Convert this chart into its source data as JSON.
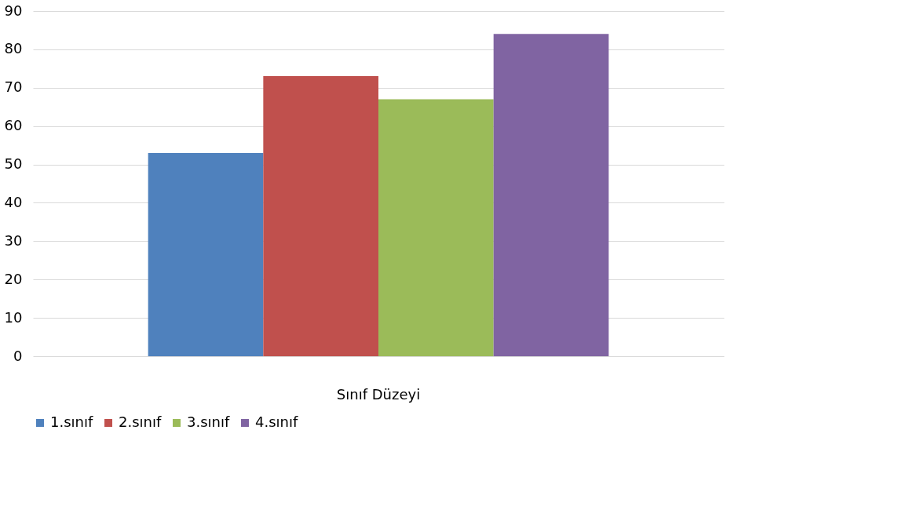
{
  "chart_data": {
    "type": "bar",
    "categories": [
      "Sınıf Düzeyi"
    ],
    "series": [
      {
        "name": "1.sınıf",
        "color": "#4f81bd",
        "values": [
          53
        ]
      },
      {
        "name": "2.sınıf",
        "color": "#c0504d",
        "values": [
          73
        ]
      },
      {
        "name": "3.sınıf",
        "color": "#9bbb59",
        "values": [
          67
        ]
      },
      {
        "name": "4.sınıf",
        "color": "#8064a2",
        "values": [
          84
        ]
      }
    ],
    "ylim": [
      0,
      90
    ],
    "yticks": [
      0,
      10,
      20,
      30,
      40,
      50,
      60,
      70,
      80,
      90
    ],
    "grid": "y",
    "legend": "bottom"
  }
}
